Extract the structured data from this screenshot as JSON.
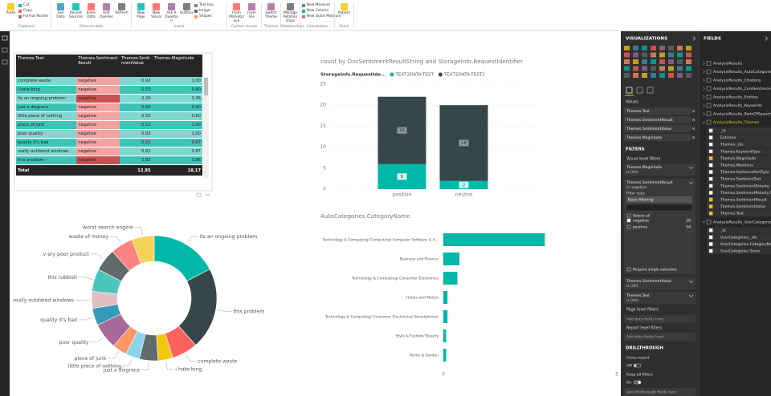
{
  "ribbon": {
    "groups": [
      {
        "label": "Clipboard",
        "large": [
          "Paste"
        ],
        "small": [
          "Cut",
          "Copy",
          "Format Painter"
        ]
      },
      {
        "label": "External data",
        "large": [
          "Get Data",
          "Recent Sources",
          "Enter Data",
          "Edit Queries",
          "Refresh"
        ]
      },
      {
        "label": "Insert",
        "large": [
          "New Page",
          "New Visual",
          "Ask A Question",
          "Buttons"
        ],
        "small": [
          "Text box",
          "Image",
          "Shapes"
        ]
      },
      {
        "label": "Custom visuals",
        "large": [
          "From Marketplace",
          "From File"
        ]
      },
      {
        "label": "Themes",
        "large": [
          "Switch Theme"
        ]
      },
      {
        "label": "Relationships",
        "large": [
          "Manage Relationships"
        ]
      },
      {
        "label": "Calculations",
        "small": [
          "New Measure",
          "New Column",
          "New Quick Measure"
        ]
      },
      {
        "label": "Share",
        "large": [
          "Publish"
        ]
      }
    ]
  },
  "table": {
    "columns": [
      "Themes.Text",
      "Themes.SentimentResult",
      "Themes.SentimentValue",
      "Themes.Magnitude"
    ],
    "rows": [
      [
        "complete waste",
        "negative",
        "0,92",
        "1,00"
      ],
      [
        "i hate bing",
        "negative",
        "0,53",
        "0,90"
      ],
      [
        "its an ongoing problem",
        "negative",
        "2,39",
        "3,36"
      ],
      [
        "just a disgrace",
        "negative",
        "0,66",
        "0,90"
      ],
      [
        "little piece of nothing",
        "negative",
        "0,50",
        "0,60"
      ],
      [
        "piece of junk",
        "negative",
        "0,52",
        "1,00"
      ],
      [
        "poor quality",
        "negative",
        "0,93",
        "1,00"
      ],
      [
        "quality it's bad",
        "negative",
        "0,61",
        "0,67"
      ],
      [
        "really outdated windows",
        "negative",
        "0,61",
        "0,87"
      ],
      [
        "this problem",
        "negative",
        "2,92",
        "3,86"
      ]
    ],
    "total": {
      "label": "Total",
      "values": [
        "12,95",
        "18,17"
      ]
    }
  },
  "chart_data": [
    {
      "type": "bar",
      "stacked": true,
      "title": "count by DocSentimentResultString and StorageInfo.RequestIdentifier",
      "legend_title": "StorageInfo.RequestIde...",
      "categories": [
        "positive",
        "neutral"
      ],
      "series": [
        {
          "name": "TEXT2DATA-TEST",
          "color": "#01B8AA",
          "values": [
            6,
            2
          ]
        },
        {
          "name": "TEXT2DATA-TEST2",
          "color": "#374649",
          "values": [
            16,
            18
          ]
        }
      ],
      "ylim": [
        0,
        25
      ],
      "yticks": [
        0,
        5,
        10,
        15,
        20,
        25
      ],
      "grid": true,
      "data_labels": true
    },
    {
      "type": "pie",
      "donut": true,
      "categories": [
        "its an ongoing problem",
        "this problem",
        "complete waste",
        "i hate bing",
        "just a disgrace",
        "little piece of nothing",
        "piece of junk",
        "poor quality",
        "quality it's bad",
        "really outdated windows",
        "this rubbish",
        "v ery poor product",
        "waste of money",
        "worst search engine"
      ],
      "values": [
        2.39,
        2.92,
        0.92,
        0.53,
        0.66,
        0.5,
        0.52,
        0.93,
        0.61,
        0.61,
        0.8,
        0.8,
        0.8,
        0.8
      ],
      "colors": [
        "#01B8AA",
        "#374649",
        "#FD625E",
        "#F2C80F",
        "#5F6B6D",
        "#8AD4EB",
        "#FE9666",
        "#A66999",
        "#3599B8",
        "#DFBFBF",
        "#4AC5BB",
        "#5F6B6D",
        "#FB8281",
        "#F4D25A"
      ]
    },
    {
      "type": "bar",
      "orientation": "horizontal",
      "title": "AutoCategories.CategoryName",
      "categories": [
        "Technology & Computing/ Computing/ Computer Software & A...",
        "Business and Finance",
        "Technology & Computing/ Consumer Electronics",
        "Hotels and Motels",
        "Technology & Computing/ Consumer Electronics/ Smartphones",
        "Style & Fashion/ Beauty",
        "Home & Garden"
      ],
      "values": [
        2.9,
        0.46,
        0.4,
        0.12,
        0.12,
        0.08,
        0.08
      ],
      "color": "#01B8AA",
      "xlim": [
        0,
        5
      ],
      "xticks": [
        0,
        5
      ]
    }
  ],
  "visualizations": {
    "title": "VISUALIZATIONS",
    "wells_title": "Values",
    "wells": [
      "Themes.Text",
      "Themes.SentimentResult",
      "Themes.SentimentValue",
      "Themes.Magnitude"
    ],
    "filters_title": "FILTERS",
    "visual_level": "Visual level filters",
    "cards": [
      {
        "field": "Themes.Magnitude",
        "state": "is (All)"
      },
      {
        "field": "Themes.SentimentResult",
        "state": "is negative",
        "filter_type_label": "Filter type",
        "filter_type": "Basic filtering",
        "select_all": "Select all",
        "options": [
          {
            "label": "negative",
            "count": 20,
            "checked": true
          },
          {
            "label": "positive",
            "count": 54,
            "checked": false
          }
        ],
        "require_single": "Require single selection"
      },
      {
        "field": "Themes.SentimentValue",
        "state": "is (All)"
      },
      {
        "field": "Themes.Text",
        "state": "is (All)"
      }
    ],
    "page_level": "Page level filters",
    "page_hint": "Add data fields here",
    "report_level": "Report level filters",
    "report_hint": "Add data fields here",
    "drillthrough": {
      "title": "DRILLTHROUGH",
      "cross_report": "Cross-report",
      "cross_state": "Off",
      "keep_filters": "Keep all filters",
      "keep_state": "On",
      "hint": "Add drillthrough fields here"
    }
  },
  "fields": {
    "title": "FIELDS",
    "tables": [
      {
        "name": "AnalysisResults"
      },
      {
        "name": "AnalysisResults_AutoCategories"
      },
      {
        "name": "AnalysisResults_Citations"
      },
      {
        "name": "AnalysisResults_CoreSentences"
      },
      {
        "name": "AnalysisResults_Entities"
      },
      {
        "name": "AnalysisResults_Keywords"
      },
      {
        "name": "AnalysisResults_PartsOfSpeech"
      },
      {
        "name": "AnalysisResults_Themes",
        "columns": [
          {
            "name": "_id",
            "checked": false
          },
          {
            "name": "Extreme",
            "checked": false
          },
          {
            "name": "Themes._ids",
            "checked": false
          },
          {
            "name": "Themes.KeywordType",
            "checked": false
          },
          {
            "name": "Themes.Magnitude",
            "checked": true
          },
          {
            "name": "Themes.Mentions",
            "checked": false
          },
          {
            "name": "Themes.SentencePartType",
            "checked": false
          },
          {
            "name": "Themes.SentenceText",
            "checked": false
          },
          {
            "name": "Themes.SentimentPolarity",
            "checked": false
          },
          {
            "name": "Themes.SentimentPolarity Hel",
            "checked": false
          },
          {
            "name": "Themes.SentimentResult",
            "checked": true
          },
          {
            "name": "Themes.SentimentValue",
            "checked": true
          },
          {
            "name": "Themes.Text",
            "checked": true
          }
        ]
      },
      {
        "name": "AnalysisResults_UserCategories",
        "columns": [
          {
            "name": "_id",
            "checked": false
          },
          {
            "name": "UserCategories._ids",
            "checked": false
          },
          {
            "name": "UserCategories.CategoryName",
            "checked": false
          },
          {
            "name": "UserCategories.Score",
            "checked": false
          }
        ]
      }
    ]
  }
}
